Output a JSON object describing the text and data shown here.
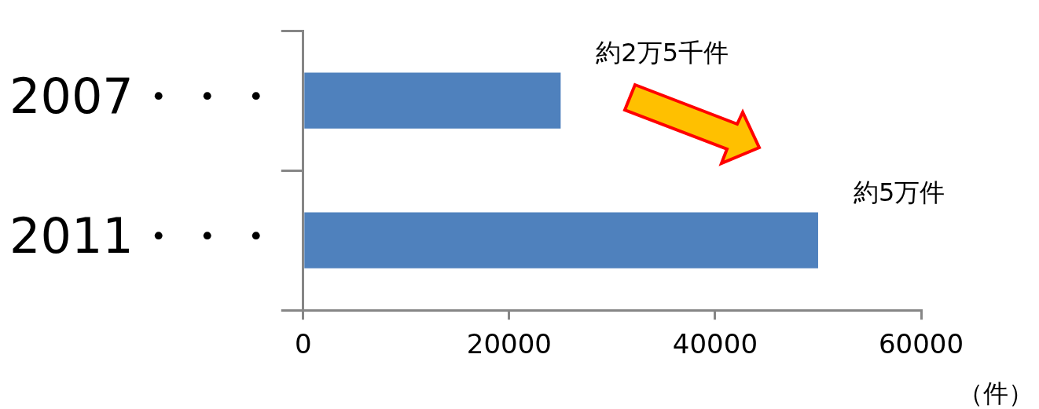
{
  "chart_data": {
    "type": "bar",
    "orientation": "horizontal",
    "categories": [
      "2007・・・",
      "2011・・・"
    ],
    "values": [
      25000,
      50000
    ],
    "color": "#4f81bd",
    "xlim": [
      0,
      60000
    ],
    "xticks": [
      0,
      20000,
      40000,
      60000
    ],
    "xlabel": "（件）",
    "grid": false,
    "legend": false,
    "annotations": [
      {
        "text": "約2万5千件",
        "x": 25000,
        "y": "2007・・・"
      },
      {
        "text": "約5万件",
        "x": 50000,
        "y": "2011・・・"
      }
    ]
  }
}
